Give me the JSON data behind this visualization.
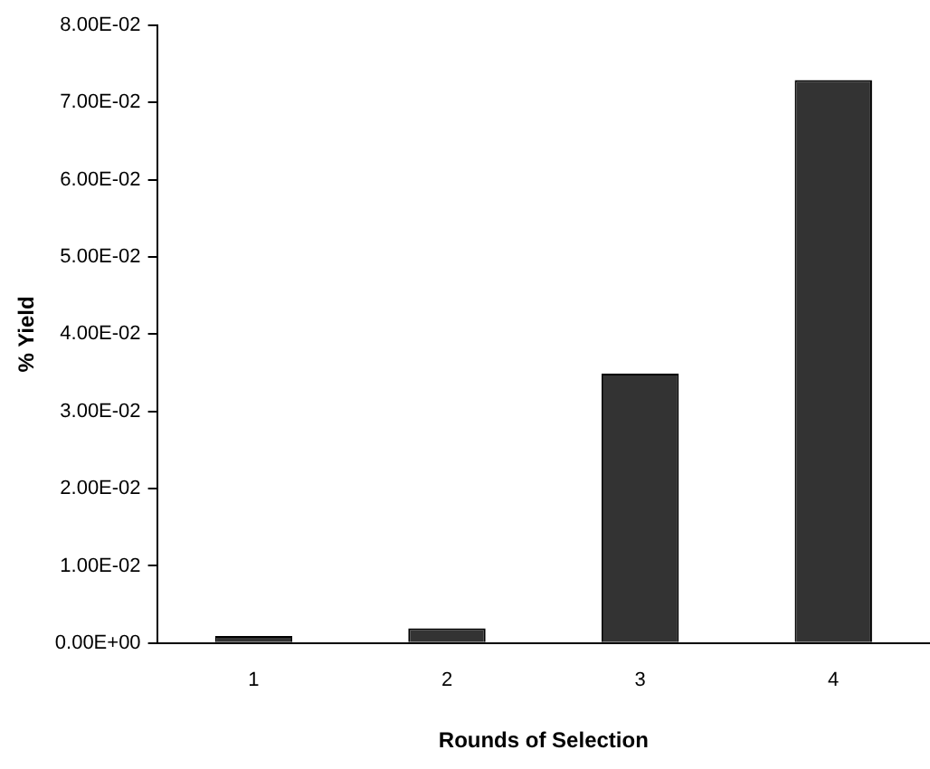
{
  "chart_data": {
    "type": "bar",
    "xlabel": "Rounds of Selection",
    "ylabel": "% Yield",
    "categories": [
      "1",
      "2",
      "3",
      "4"
    ],
    "values": [
      0.0009,
      0.0019,
      0.0349,
      0.0729
    ],
    "color": "#333333",
    "ylim": [
      0,
      0.08
    ],
    "yticks": [
      {
        "value": 0,
        "label": "0.00E+00"
      },
      {
        "value": 0.01,
        "label": "1.00E-02"
      },
      {
        "value": 0.02,
        "label": "2.00E-02"
      },
      {
        "value": 0.03,
        "label": "3.00E-02"
      },
      {
        "value": 0.04,
        "label": "4.00E-02"
      },
      {
        "value": 0.05,
        "label": "5.00E-02"
      },
      {
        "value": 0.06,
        "label": "6.00E-02"
      },
      {
        "value": 0.07,
        "label": "7.00E-02"
      },
      {
        "value": 0.08,
        "label": "8.00E-02"
      }
    ],
    "grid": false,
    "legend": false
  }
}
